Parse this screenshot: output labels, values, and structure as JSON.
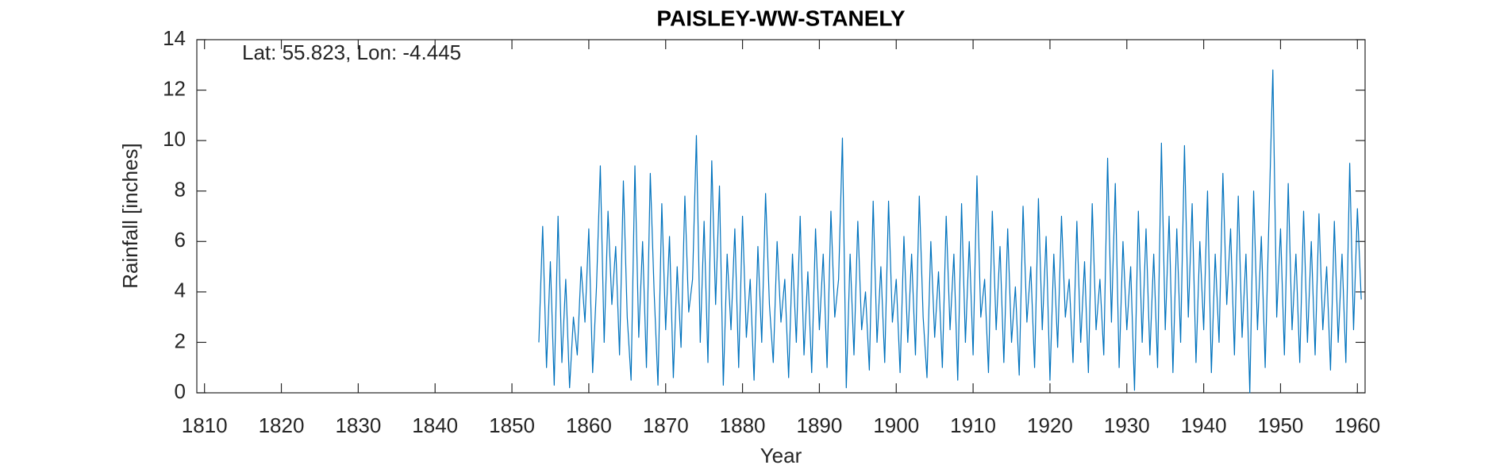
{
  "chart_data": {
    "type": "line",
    "title": "PAISLEY-WW-STANELY",
    "annotation": "Lat: 55.823, Lon: -4.445",
    "x_label": "Year",
    "y_label": "Rainfall [inches]",
    "color": "#0072bd",
    "xlim": [
      1809,
      1961
    ],
    "ylim": [
      0,
      14
    ],
    "xticks": [
      1810,
      1820,
      1830,
      1840,
      1850,
      1860,
      1870,
      1880,
      1890,
      1900,
      1910,
      1920,
      1930,
      1940,
      1950,
      1960
    ],
    "yticks": [
      0,
      2,
      4,
      6,
      8,
      10,
      12,
      14
    ],
    "x": [
      1853.5,
      1854,
      1854.5,
      1855,
      1855.5,
      1856,
      1856.5,
      1857,
      1857.5,
      1858,
      1858.5,
      1859,
      1859.5,
      1860,
      1860.5,
      1861,
      1861.5,
      1862,
      1862.5,
      1863,
      1863.5,
      1864,
      1864.5,
      1865,
      1865.5,
      1866,
      1866.5,
      1867,
      1867.5,
      1868,
      1868.5,
      1869,
      1869.5,
      1870,
      1870.5,
      1871,
      1871.5,
      1872,
      1872.5,
      1873,
      1873.5,
      1874,
      1874.5,
      1875,
      1875.5,
      1876,
      1876.5,
      1877,
      1877.5,
      1878,
      1878.5,
      1879,
      1879.5,
      1880,
      1880.5,
      1881,
      1881.5,
      1882,
      1882.5,
      1883,
      1883.5,
      1884,
      1884.5,
      1885,
      1885.5,
      1886,
      1886.5,
      1887,
      1887.5,
      1888,
      1888.5,
      1889,
      1889.5,
      1890,
      1890.5,
      1891,
      1891.5,
      1892,
      1892.5,
      1893,
      1893.5,
      1894,
      1894.5,
      1895,
      1895.5,
      1896,
      1896.5,
      1897,
      1897.5,
      1898,
      1898.5,
      1899,
      1899.5,
      1900,
      1900.5,
      1901,
      1901.5,
      1902,
      1902.5,
      1903,
      1903.5,
      1904,
      1904.5,
      1905,
      1905.5,
      1906,
      1906.5,
      1907,
      1907.5,
      1908,
      1908.5,
      1909,
      1909.5,
      1910,
      1910.5,
      1911,
      1911.5,
      1912,
      1912.5,
      1913,
      1913.5,
      1914,
      1914.5,
      1915,
      1915.5,
      1916,
      1916.5,
      1917,
      1917.5,
      1918,
      1918.5,
      1919,
      1919.5,
      1920,
      1920.5,
      1921,
      1921.5,
      1922,
      1922.5,
      1923,
      1923.5,
      1924,
      1924.5,
      1925,
      1925.5,
      1926,
      1926.5,
      1927,
      1927.5,
      1928,
      1928.5,
      1929,
      1929.5,
      1930,
      1930.5,
      1931,
      1931.5,
      1932,
      1932.5,
      1933,
      1933.5,
      1934,
      1934.5,
      1935,
      1935.5,
      1936,
      1936.5,
      1937,
      1937.5,
      1938,
      1938.5,
      1939,
      1939.5,
      1940,
      1940.5,
      1941,
      1941.5,
      1942,
      1942.5,
      1943,
      1943.5,
      1944,
      1944.5,
      1945,
      1945.5,
      1946,
      1946.5,
      1947,
      1947.5,
      1948,
      1948.5,
      1949,
      1949.5,
      1950,
      1950.5,
      1951,
      1951.5,
      1952,
      1952.5,
      1953,
      1953.5,
      1954,
      1954.5,
      1955,
      1955.5,
      1956,
      1956.5,
      1957,
      1957.5,
      1958,
      1958.5,
      1959,
      1959.5,
      1960,
      1960.5
    ],
    "values": [
      2.0,
      6.6,
      1.0,
      5.2,
      0.3,
      7.0,
      1.2,
      4.5,
      0.2,
      3.0,
      1.5,
      5.0,
      2.8,
      6.5,
      0.8,
      4.2,
      9.0,
      2.0,
      7.2,
      3.5,
      5.8,
      1.5,
      8.4,
      3.0,
      0.5,
      9.0,
      2.2,
      6.0,
      1.0,
      8.7,
      4.0,
      0.3,
      7.5,
      2.5,
      6.2,
      0.6,
      5.0,
      1.8,
      7.8,
      3.2,
      4.5,
      10.2,
      2.0,
      6.8,
      1.2,
      9.2,
      3.5,
      8.2,
      0.3,
      5.5,
      2.5,
      6.5,
      1.0,
      7.0,
      2.2,
      4.5,
      0.5,
      5.8,
      2.0,
      7.9,
      3.5,
      1.2,
      6.0,
      2.8,
      4.5,
      0.6,
      5.5,
      2.0,
      7.0,
      1.5,
      4.8,
      0.8,
      6.5,
      2.5,
      5.5,
      1.0,
      7.2,
      3.0,
      4.5,
      10.1,
      0.2,
      5.5,
      1.5,
      6.8,
      2.5,
      4.0,
      0.9,
      7.6,
      2.0,
      5.0,
      1.2,
      7.6,
      2.8,
      4.5,
      0.8,
      6.2,
      2.0,
      5.5,
      1.5,
      7.8,
      3.0,
      0.6,
      6.0,
      2.2,
      4.8,
      1.0,
      7.0,
      2.5,
      5.5,
      0.5,
      7.5,
      2.0,
      6.0,
      1.5,
      8.6,
      3.0,
      4.5,
      0.8,
      7.2,
      2.5,
      5.8,
      1.2,
      6.5,
      2.0,
      4.2,
      0.7,
      7.4,
      2.8,
      5.0,
      1.0,
      7.7,
      2.5,
      6.2,
      0.5,
      5.5,
      1.8,
      7.0,
      3.0,
      4.5,
      1.2,
      6.8,
      2.0,
      5.2,
      0.8,
      7.5,
      2.5,
      4.5,
      1.5,
      9.3,
      2.8,
      8.3,
      1.0,
      6.0,
      2.5,
      5.0,
      0.1,
      7.2,
      2.0,
      6.5,
      1.5,
      5.5,
      1.0,
      9.9,
      2.5,
      7.0,
      0.8,
      6.5,
      2.0,
      9.8,
      3.0,
      7.5,
      1.2,
      6.0,
      2.5,
      8.0,
      0.8,
      5.5,
      2.0,
      8.7,
      3.5,
      6.5,
      1.5,
      7.8,
      2.2,
      5.5,
      0.0,
      8.0,
      2.5,
      6.2,
      1.0,
      7.0,
      12.8,
      3.0,
      6.5,
      1.5,
      8.3,
      2.5,
      5.5,
      1.2,
      7.2,
      2.0,
      6.0,
      1.5,
      7.1,
      2.5,
      5.0,
      0.9,
      6.8,
      2.0,
      5.5,
      1.2,
      9.1,
      2.5,
      7.3,
      3.7
    ]
  }
}
